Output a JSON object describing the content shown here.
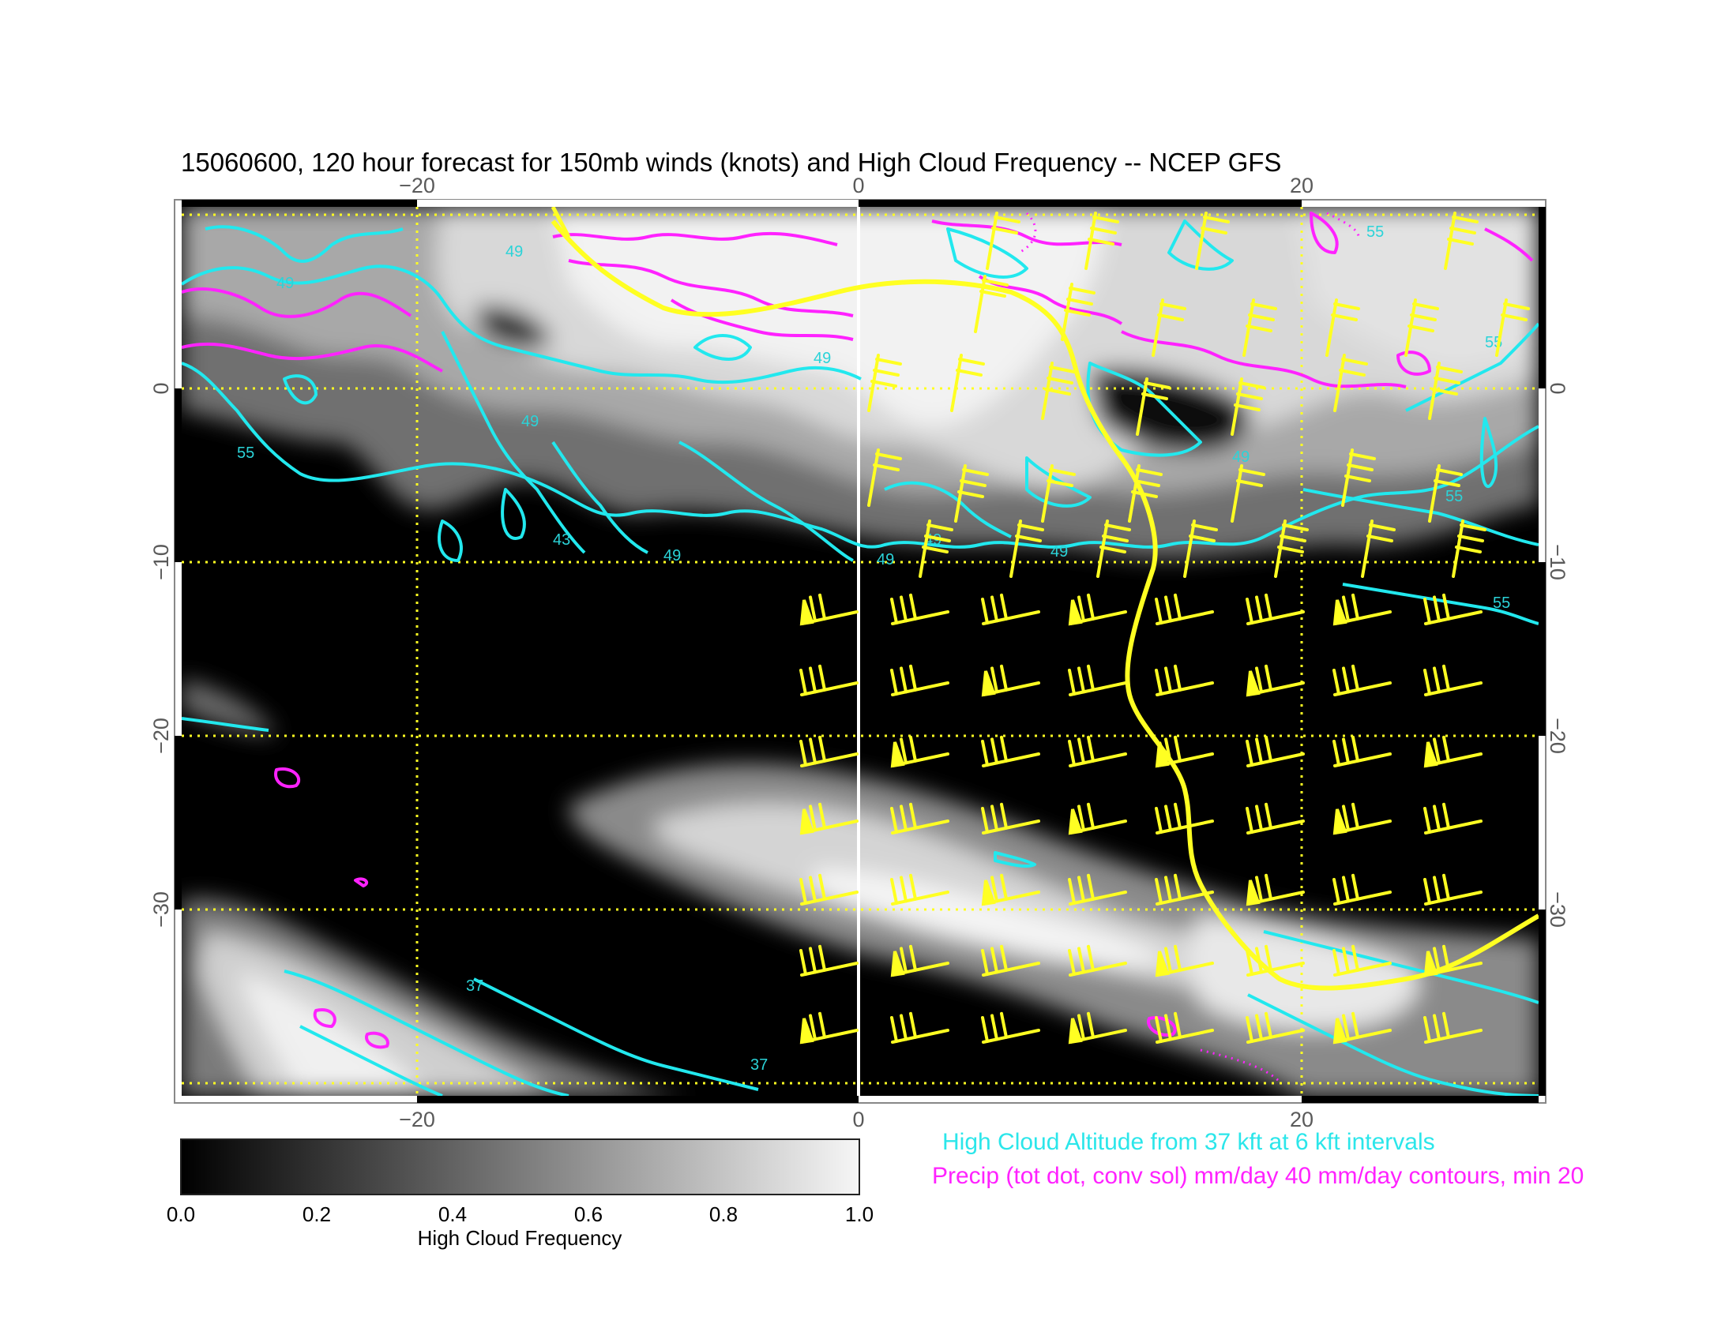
{
  "title": "15060600, 120 hour forecast for 150mb winds (knots) and High Cloud Frequency -- NCEP GFS",
  "x_ticks": [
    "−20",
    "0",
    "20"
  ],
  "y_ticks": [
    "0",
    "−10",
    "−20",
    "−30"
  ],
  "colorbar": {
    "label": "High Cloud Frequency",
    "ticks": [
      "0.0",
      "0.2",
      "0.4",
      "0.6",
      "0.8",
      "1.0"
    ]
  },
  "legend": {
    "cyan": "High Cloud Altitude from 37 kft at 6 kft intervals",
    "magenta": "Precip (tot dot, conv sol) mm/day 40 mm/day contours, min 20"
  },
  "contour_labels": [
    "49",
    "49",
    "49",
    "55",
    "49",
    "43",
    "49",
    "49",
    "49",
    "49",
    "49",
    "55",
    "55",
    "37",
    "37",
    "55",
    "55"
  ],
  "colors": {
    "cloud": "#f2f2f2",
    "altitude": "#22e8ee",
    "precip": "#ff22ff",
    "wind": "#ffff22",
    "grid": "#ffff22"
  },
  "map": {
    "lon_range": [
      -30,
      30
    ],
    "lat_range": [
      -40,
      10
    ],
    "gridlines": "dotted yellow every 20 lon / 10 lat"
  }
}
